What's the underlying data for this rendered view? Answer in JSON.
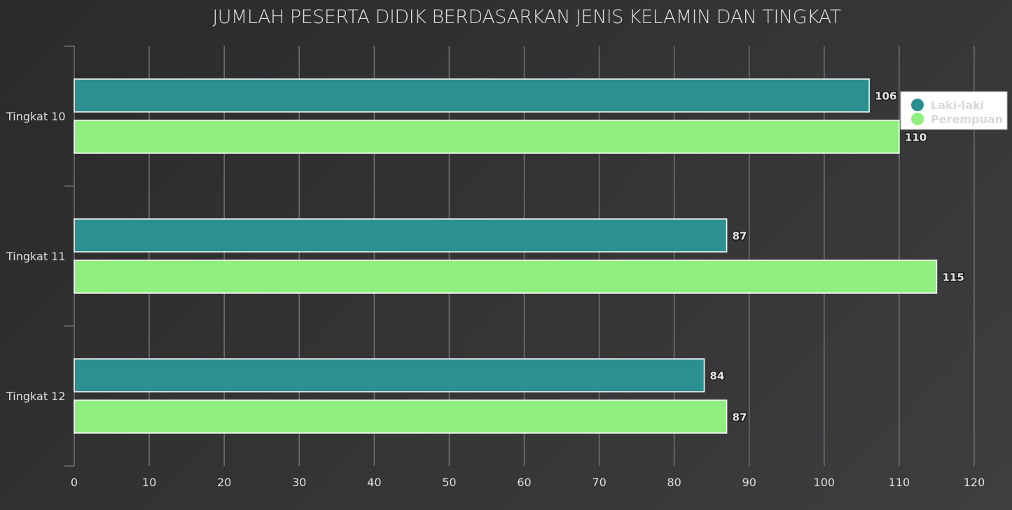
{
  "chart_data": {
    "type": "bar",
    "orientation": "horizontal",
    "title": "JUMLAH PESERTA DIDIK BERDASARKAN JENIS KELAMIN DAN TINGKAT",
    "categories": [
      "Tingkat 10",
      "Tingkat 11",
      "Tingkat 12"
    ],
    "series": [
      {
        "name": "Laki-laki",
        "values": [
          106,
          87,
          84
        ],
        "color": "#2b908f"
      },
      {
        "name": "Perempuan",
        "values": [
          110,
          115,
          87
        ],
        "color": "#90ee7e"
      }
    ],
    "xlim": [
      0,
      120
    ],
    "x_ticks": [
      0,
      10,
      20,
      30,
      40,
      50,
      60,
      70,
      80,
      90,
      100,
      110,
      120
    ],
    "grid": true,
    "data_labels": true,
    "legend_placement": "top-right"
  }
}
